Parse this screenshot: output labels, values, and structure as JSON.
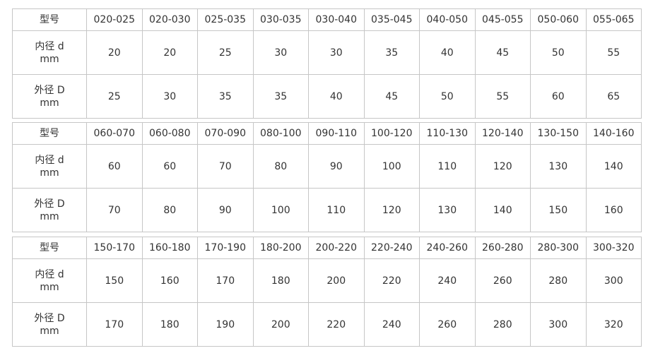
{
  "row_labels": {
    "model": "型号",
    "inner": "内径 d",
    "outer": "外径 D",
    "unit": "mm"
  },
  "tables": [
    {
      "models": [
        "020-025",
        "020-030",
        "025-035",
        "030-035",
        "030-040",
        "035-045",
        "040-050",
        "045-055",
        "050-060",
        "055-065"
      ],
      "inner": [
        "20",
        "20",
        "25",
        "30",
        "30",
        "35",
        "40",
        "45",
        "50",
        "55"
      ],
      "outer": [
        "25",
        "30",
        "35",
        "35",
        "40",
        "45",
        "50",
        "55",
        "60",
        "65"
      ]
    },
    {
      "models": [
        "060-070",
        "060-080",
        "070-090",
        "080-100",
        "090-110",
        "100-120",
        "110-130",
        "120-140",
        "130-150",
        "140-160"
      ],
      "inner": [
        "60",
        "60",
        "70",
        "80",
        "90",
        "100",
        "110",
        "120",
        "130",
        "140"
      ],
      "outer": [
        "70",
        "80",
        "90",
        "100",
        "110",
        "120",
        "130",
        "140",
        "150",
        "160"
      ]
    },
    {
      "models": [
        "150-170",
        "160-180",
        "170-190",
        "180-200",
        "200-220",
        "220-240",
        "240-260",
        "260-280",
        "280-300",
        "300-320"
      ],
      "inner": [
        "150",
        "160",
        "170",
        "180",
        "200",
        "220",
        "240",
        "260",
        "280",
        "300"
      ],
      "outer": [
        "170",
        "180",
        "190",
        "200",
        "220",
        "240",
        "260",
        "280",
        "300",
        "320"
      ]
    }
  ]
}
